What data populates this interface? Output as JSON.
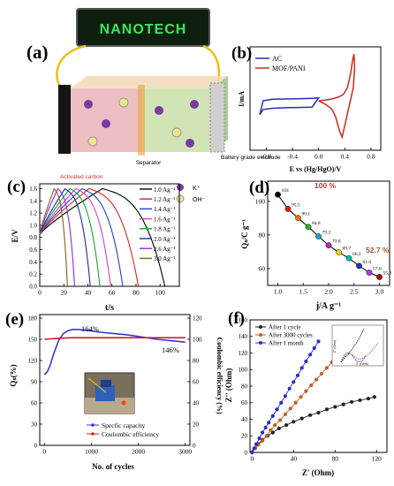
{
  "panel_labels": [
    "(a)",
    "(b)",
    "(c)",
    "(d)",
    "(e)",
    "(f)"
  ],
  "schematic": {
    "brand": "NANOTECH",
    "separator_label": "Separator",
    "left_electrode_label": "Activated carbon",
    "right_electrode_label": "Battery grade electrode",
    "ion_labels": [
      "K⁺",
      "OH⁻"
    ],
    "colors": {
      "board": "#0f1f0f",
      "brand_text": "#3ce65a",
      "wire": "#e8c21a"
    }
  },
  "chart_data": [
    {
      "panel": "(b)",
      "type": "line",
      "xlabel": "E vs (Hg/HgO)/V",
      "ylabel": "I/mA",
      "xticks": [
        -0.8,
        -0.4,
        0.0,
        0.4,
        0.8
      ],
      "xlim": [
        -1.05,
        0.95
      ],
      "ylim": [
        -1.7,
        1.85
      ],
      "legend_position": "top-left",
      "series": [
        {
          "name": "AC",
          "color": "#2233aa",
          "x": [
            -0.9,
            -0.85,
            -0.7,
            -0.5,
            -0.3,
            -0.1,
            0.0,
            -0.1,
            -0.3,
            -0.5,
            -0.7,
            -0.85,
            -0.9
          ],
          "y": [
            -0.48,
            0.0,
            0.05,
            0.06,
            0.07,
            0.08,
            0.1,
            -0.22,
            -0.23,
            -0.24,
            -0.26,
            -0.3,
            -0.48
          ]
        },
        {
          "name": "MOF/PANI",
          "color": "#cc2a1c",
          "x": [
            0.0,
            0.1,
            0.2,
            0.3,
            0.38,
            0.44,
            0.49,
            0.52,
            0.54,
            0.55,
            0.53,
            0.49,
            0.45,
            0.4,
            0.36,
            0.32,
            0.26,
            0.2,
            0.1,
            0.0
          ],
          "y": [
            0.0,
            0.02,
            0.06,
            0.12,
            0.22,
            0.45,
            0.95,
            1.4,
            1.6,
            1.1,
            0.45,
            0.05,
            -0.35,
            -0.85,
            -1.25,
            -1.05,
            -0.55,
            -0.28,
            -0.12,
            0.0
          ]
        }
      ]
    },
    {
      "panel": "(c)",
      "type": "line",
      "xlabel": "t/s",
      "ylabel": "E/V",
      "xticks": [
        0,
        20,
        40,
        60,
        80,
        100
      ],
      "yticks": [
        0.0,
        0.2,
        0.4,
        0.6,
        0.8,
        1.0,
        1.2,
        1.4,
        1.6
      ],
      "xlim": [
        0,
        116
      ],
      "ylim": [
        0,
        1.68
      ],
      "legend_position": "right",
      "series": [
        {
          "name": "1.0 Ag⁻¹",
          "color": "#000000",
          "charge_time": 52,
          "total_time": 104
        },
        {
          "name": "1.2 Ag⁻¹",
          "color": "#e0251f",
          "charge_time": 41,
          "total_time": 82
        },
        {
          "name": "1.4 Ag⁻¹",
          "color": "#1f3fd0",
          "charge_time": 35,
          "total_time": 69
        },
        {
          "name": "1.6 Ag⁻¹",
          "color": "#d63ec2",
          "charge_time": 30,
          "total_time": 59
        },
        {
          "name": "1.8 Ag⁻¹",
          "color": "#16a33c",
          "charge_time": 25,
          "total_time": 50
        },
        {
          "name": "2.0 Ag⁻¹",
          "color": "#1f2aa0",
          "charge_time": 21,
          "total_time": 42
        },
        {
          "name": "2.6 Ag⁻¹",
          "color": "#8a2be2",
          "charge_time": 15,
          "total_time": 29
        },
        {
          "name": "3.0 Ag⁻¹",
          "color": "#806020",
          "charge_time": 12,
          "total_time": 23
        }
      ]
    },
    {
      "panel": "(d)",
      "type": "line",
      "xlabel": "j/A g⁻¹",
      "ylabel": "Qₛ/C g⁻¹",
      "xticks": [
        1.0,
        1.5,
        2.0,
        2.5,
        3.0
      ],
      "yticks": [
        60,
        80,
        100
      ],
      "xlim": [
        0.8,
        3.2
      ],
      "ylim": [
        50,
        112
      ],
      "x": [
        1.0,
        1.2,
        1.4,
        1.6,
        1.8,
        2.0,
        2.2,
        2.4,
        2.6,
        2.8,
        3.0
      ],
      "y": [
        104,
        95.5,
        90.1,
        84.8,
        79.2,
        73.8,
        69.7,
        66.2,
        61.6,
        57.6,
        55.0
      ],
      "labels": [
        "104",
        "95.5",
        "90.1",
        "84.8",
        "79.2",
        "73.8",
        "69.7",
        "66.2",
        "61.6",
        "57.6",
        "55.0"
      ],
      "colors": [
        "#000000",
        "#e01818",
        "#f07010",
        "#26b026",
        "#1aa0d0",
        "#c020c0",
        "#f0d010",
        "#00c0a0",
        "#2030c0",
        "#a040e0",
        "#a01010"
      ],
      "annotations": [
        "100 %",
        "52.7 %"
      ],
      "annotation_color": "#c0392b"
    },
    {
      "panel": "(e)",
      "type": "line",
      "xlabel": "No. of cycles",
      "ylabel": "Qₛ(%)",
      "ylabel_right": "Coulombic efficiency (%)",
      "xticks": [
        0,
        1000,
        2000,
        3000
      ],
      "yticks": [
        0,
        30,
        60,
        90,
        120,
        150,
        180
      ],
      "yticks_right": [
        0,
        20,
        40,
        60,
        80,
        100,
        120
      ],
      "xlim": [
        -100,
        3100
      ],
      "ylim": [
        0,
        185
      ],
      "ylim_right": [
        0,
        123.3
      ],
      "annotations": [
        "164%",
        "146%"
      ],
      "legend_position": "bottom-right",
      "series": [
        {
          "name": "Specfic capacity",
          "color": "#3636e0",
          "axis": "left",
          "x": [
            0,
            60,
            120,
            200,
            300,
            400,
            500,
            600,
            700,
            800,
            1000,
            1200,
            1500,
            1800,
            2100,
            2400,
            2700,
            3000
          ],
          "y": [
            100,
            104,
            113,
            130,
            148,
            158,
            162,
            164,
            164,
            163.5,
            162,
            160,
            158,
            156,
            153,
            150,
            148,
            146
          ]
        },
        {
          "name": "Coulombic efficiency",
          "color": "#cc2222",
          "axis": "right",
          "x": [
            0,
            300,
            600,
            900,
            1200,
            1500,
            1800,
            2100,
            2400,
            2700,
            3000
          ],
          "y": [
            100,
            101,
            101.5,
            101.5,
            101.5,
            101.5,
            101.5,
            101.5,
            101.5,
            101.5,
            101.5
          ]
        }
      ]
    },
    {
      "panel": "(f)",
      "type": "scatter",
      "xlabel": "Z' (Ohm)",
      "ylabel": "Z'' (Ohm)",
      "xticks": [
        0,
        40,
        80,
        120
      ],
      "yticks": [
        0,
        20,
        40,
        60,
        80,
        100,
        120,
        140,
        160
      ],
      "xlim": [
        -2,
        130
      ],
      "ylim": [
        0,
        160
      ],
      "legend_position": "top-left",
      "series": [
        {
          "name": "After 1 cycle",
          "color": "#222222",
          "x": [
            0,
            3,
            6,
            10,
            15,
            20,
            26,
            33,
            40,
            48,
            56,
            64,
            72,
            80,
            88,
            96,
            104,
            112,
            118
          ],
          "y": [
            0,
            5,
            10,
            15,
            20,
            24,
            29,
            33,
            37,
            41,
            45,
            48,
            52,
            55,
            58,
            61,
            63,
            65,
            67
          ]
        },
        {
          "name": "After 3000 cycles",
          "color": "#c0622a",
          "x": [
            0,
            3,
            6,
            10,
            14,
            18,
            22,
            27,
            32,
            37,
            42,
            47,
            52,
            57,
            62,
            67,
            72,
            77,
            82,
            86
          ],
          "y": [
            0,
            5,
            9,
            14,
            20,
            27,
            33,
            39,
            46,
            53,
            60,
            67,
            74,
            81,
            88,
            95,
            102,
            109,
            116,
            122
          ]
        },
        {
          "name": "After 1 month",
          "color": "#2d2dcc",
          "x": [
            0,
            2,
            4,
            7,
            10,
            13,
            16,
            20,
            24,
            28,
            32,
            36,
            40,
            44,
            48,
            52,
            56,
            60,
            64
          ],
          "y": [
            0,
            5,
            10,
            17,
            24,
            30,
            36,
            44,
            52,
            60,
            68,
            77,
            85,
            93,
            102,
            110,
            118,
            126,
            134
          ]
        }
      ],
      "inset": {
        "xlabel": "Z' (Ohm)",
        "ylabel": "Z'' (Ohm)"
      }
    }
  ]
}
